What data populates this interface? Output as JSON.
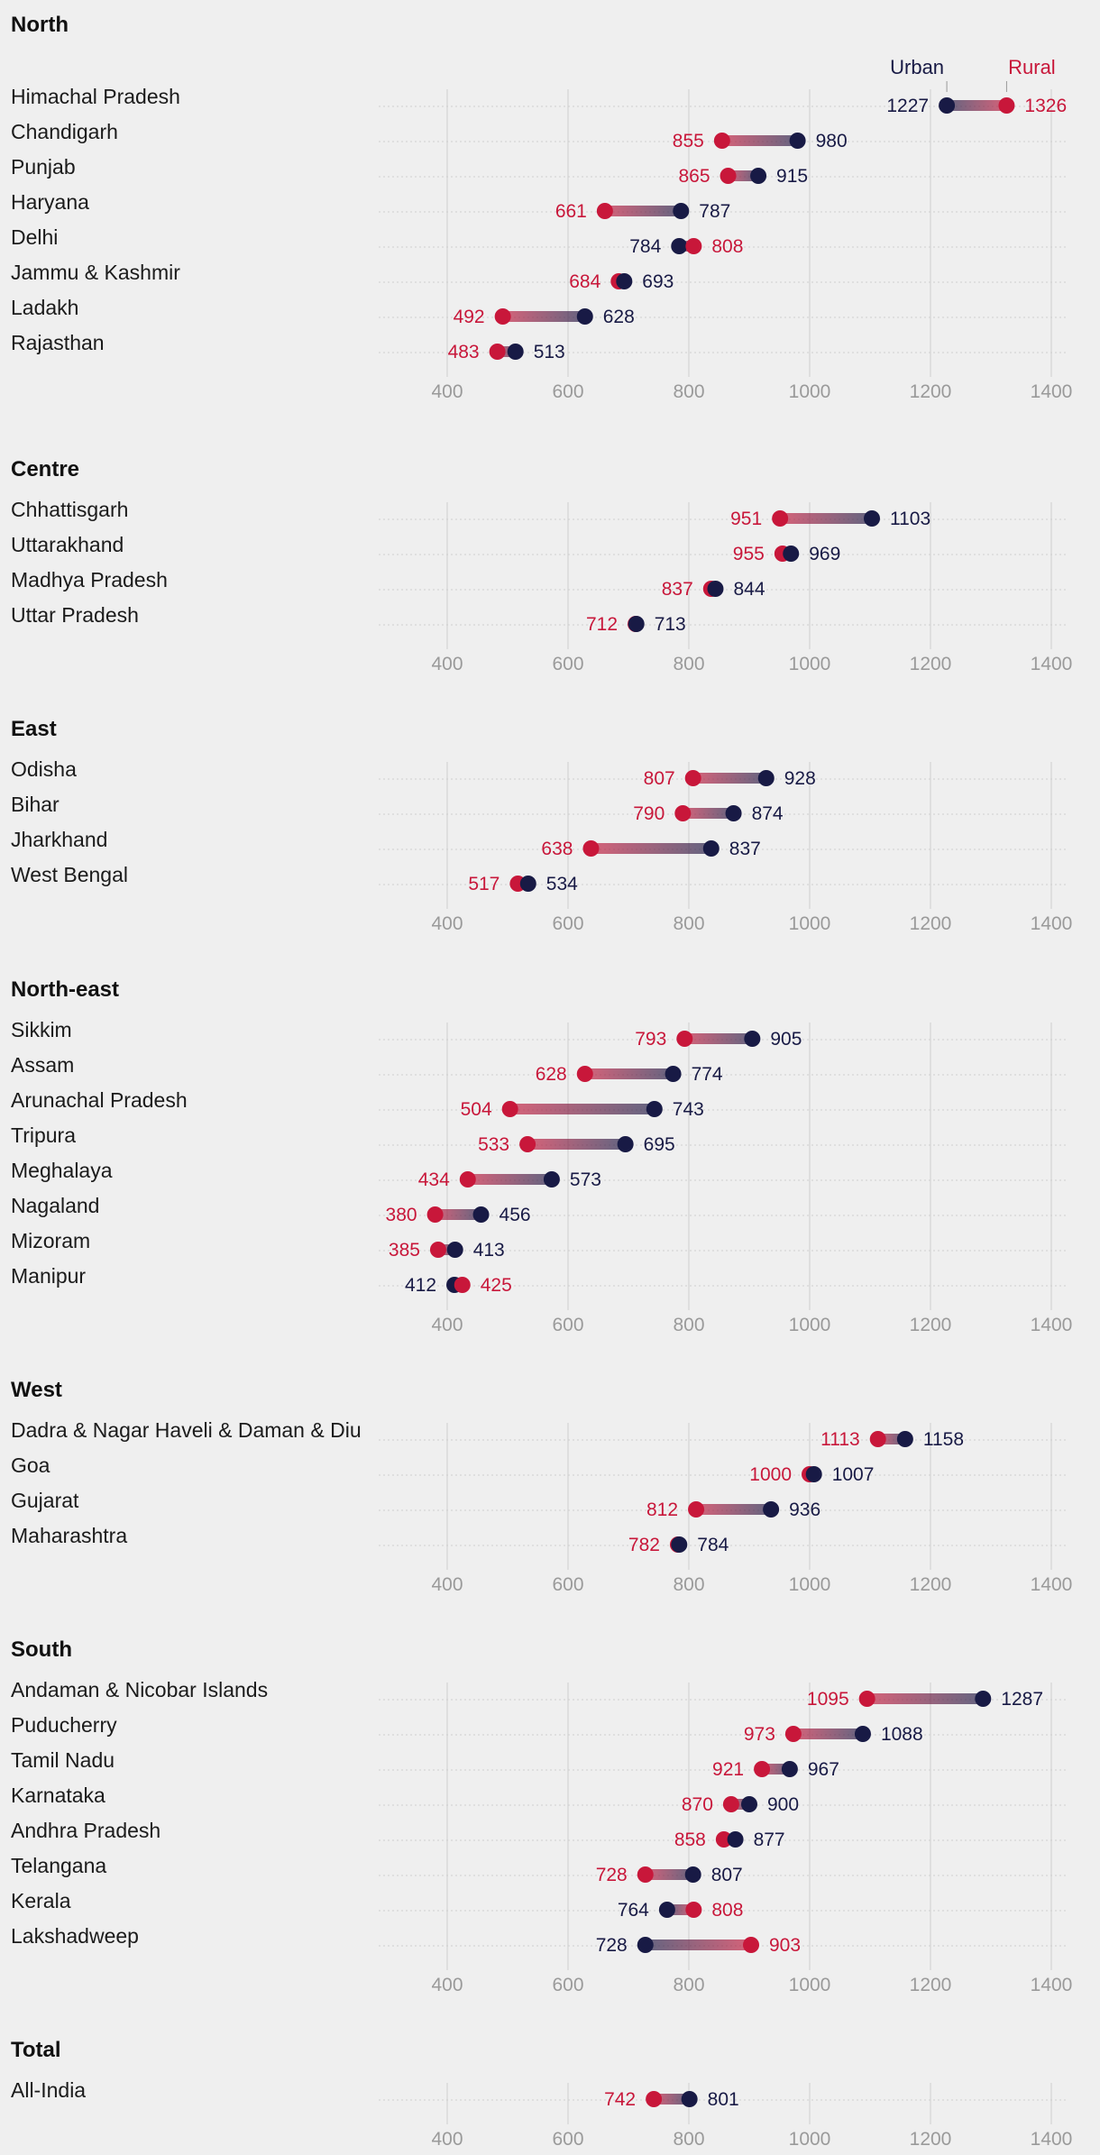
{
  "chart_data": {
    "type": "dumbbell",
    "colors": {
      "urban": "#181a45",
      "rural": "#c8173a",
      "grid": "#d4d4d4",
      "tick": "#9a9a9a"
    },
    "legend": {
      "urban": "Urban",
      "rural": "Rural"
    },
    "xlim": [
      285,
      1425
    ],
    "ticks": [
      400,
      600,
      800,
      1000,
      1200,
      1400
    ],
    "groups": [
      {
        "region": "North",
        "rows": [
          {
            "state": "Himachal Pradesh",
            "urban": 1227,
            "rural": 1326
          },
          {
            "state": "Chandigarh",
            "urban": 980,
            "rural": 855
          },
          {
            "state": "Punjab",
            "urban": 915,
            "rural": 865
          },
          {
            "state": "Haryana",
            "urban": 787,
            "rural": 661
          },
          {
            "state": "Delhi",
            "urban": 784,
            "rural": 808
          },
          {
            "state": "Jammu & Kashmir",
            "urban": 693,
            "rural": 684
          },
          {
            "state": "Ladakh",
            "urban": 628,
            "rural": 492
          },
          {
            "state": "Rajasthan",
            "urban": 513,
            "rural": 483
          }
        ]
      },
      {
        "region": "Centre",
        "rows": [
          {
            "state": "Chhattisgarh",
            "urban": 1103,
            "rural": 951
          },
          {
            "state": "Uttarakhand",
            "urban": 969,
            "rural": 955
          },
          {
            "state": "Madhya Pradesh",
            "urban": 844,
            "rural": 837
          },
          {
            "state": "Uttar Pradesh",
            "urban": 713,
            "rural": 712
          }
        ]
      },
      {
        "region": "East",
        "rows": [
          {
            "state": "Odisha",
            "urban": 928,
            "rural": 807
          },
          {
            "state": "Bihar",
            "urban": 874,
            "rural": 790
          },
          {
            "state": "Jharkhand",
            "urban": 837,
            "rural": 638
          },
          {
            "state": "West Bengal",
            "urban": 534,
            "rural": 517
          }
        ]
      },
      {
        "region": "North-east",
        "rows": [
          {
            "state": "Sikkim",
            "urban": 905,
            "rural": 793
          },
          {
            "state": "Assam",
            "urban": 774,
            "rural": 628
          },
          {
            "state": "Arunachal Pradesh",
            "urban": 743,
            "rural": 504
          },
          {
            "state": "Tripura",
            "urban": 695,
            "rural": 533
          },
          {
            "state": "Meghalaya",
            "urban": 573,
            "rural": 434
          },
          {
            "state": "Nagaland",
            "urban": 456,
            "rural": 380
          },
          {
            "state": "Mizoram",
            "urban": 413,
            "rural": 385
          },
          {
            "state": "Manipur",
            "urban": 412,
            "rural": 425
          }
        ]
      },
      {
        "region": "West",
        "rows": [
          {
            "state": "Dadra & Nagar Haveli & Daman & Diu",
            "urban": 1158,
            "rural": 1113
          },
          {
            "state": "Goa",
            "urban": 1007,
            "rural": 1000
          },
          {
            "state": "Gujarat",
            "urban": 936,
            "rural": 812
          },
          {
            "state": "Maharashtra",
            "urban": 784,
            "rural": 782
          }
        ]
      },
      {
        "region": "South",
        "rows": [
          {
            "state": "Andaman & Nicobar Islands",
            "urban": 1287,
            "rural": 1095
          },
          {
            "state": "Puducherry",
            "urban": 1088,
            "rural": 973
          },
          {
            "state": "Tamil Nadu",
            "urban": 967,
            "rural": 921
          },
          {
            "state": "Karnataka",
            "urban": 900,
            "rural": 870
          },
          {
            "state": "Andhra Pradesh",
            "urban": 877,
            "rural": 858
          },
          {
            "state": "Telangana",
            "urban": 807,
            "rural": 728
          },
          {
            "state": "Kerala",
            "urban": 764,
            "rural": 808
          },
          {
            "state": "Lakshadweep",
            "urban": 728,
            "rural": 903
          }
        ]
      },
      {
        "region": "Total",
        "rows": [
          {
            "state": "All-India",
            "urban": 801,
            "rural": 742
          }
        ]
      }
    ]
  }
}
